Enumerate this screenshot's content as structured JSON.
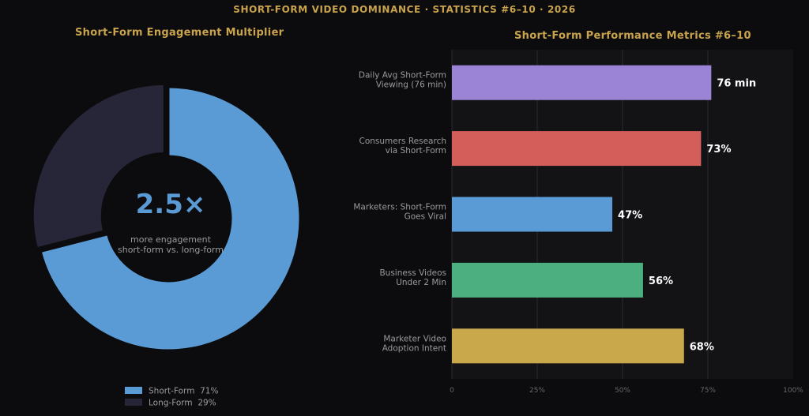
{
  "header": {
    "title": "SHORT-FORM VIDEO DOMINANCE  ·  STATISTICS #6–10  ·  2026"
  },
  "colors": {
    "background": "#0c0c0e",
    "plot_background": "#131316",
    "title_gold": "#c9a44c",
    "center_blue": "#5b9bd5",
    "label_gray": "#9a9a9a",
    "value_white": "#ffffff"
  },
  "chart_data": [
    {
      "type": "pie",
      "title": "Short-Form Engagement Multiplier",
      "donut": true,
      "center_value": "2.5×",
      "center_caption_line1": "more engagement",
      "center_caption_line2": "short-form vs. long-form",
      "slices": [
        {
          "label": "Short-Form",
          "value": 71,
          "legend": "Short-Form  71%",
          "color": "#5b9bd5"
        },
        {
          "label": "Long-Form",
          "value": 29,
          "legend": "Long-Form  29%",
          "color": "#262638"
        }
      ],
      "legend_position": "bottom-center"
    },
    {
      "type": "bar",
      "orientation": "horizontal",
      "title": "Short-Form Performance Metrics #6–10",
      "categories": [
        [
          "Daily Avg Short-Form",
          "Viewing (76 min)"
        ],
        [
          "Consumers Research",
          "via Short-Form"
        ],
        [
          "Marketers: Short-Form",
          "Goes Viral"
        ],
        [
          "Business Videos",
          "Under 2 Min"
        ],
        [
          "Marketer Video",
          "Adoption Intent"
        ]
      ],
      "values": [
        76,
        73,
        47,
        56,
        68
      ],
      "value_labels": [
        "76 min",
        "73%",
        "47%",
        "56%",
        "68%"
      ],
      "bar_colors": [
        "#9b84d6",
        "#d45f5a",
        "#5b9bd5",
        "#4caf80",
        "#c9a84c"
      ],
      "xlim": [
        0,
        100
      ],
      "xticks": [
        0,
        25,
        50,
        75,
        100
      ],
      "xtick_labels": [
        "0",
        "25%",
        "50%",
        "75%",
        "100%"
      ],
      "grid": "vertical",
      "xlabel": "",
      "ylabel": ""
    }
  ]
}
